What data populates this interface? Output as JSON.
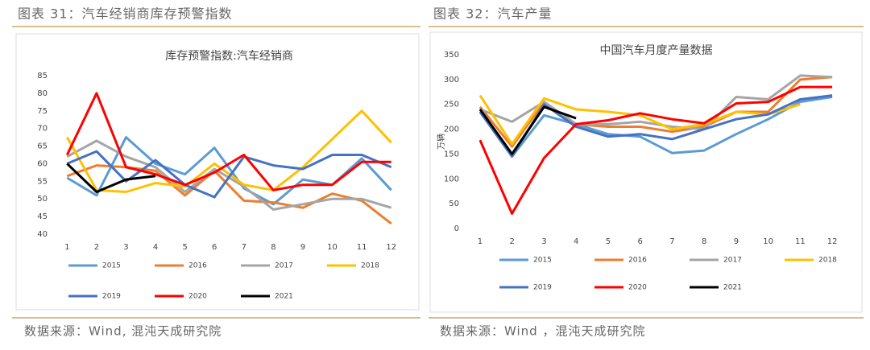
{
  "chart_data": [
    {
      "type": "line",
      "caption": "图表 31：汽车经销商库存预警指数",
      "title": "库存预警指数:汽车经销商",
      "source": "数据来源：Wind, 混沌天成研究院",
      "categories": [
        "1",
        "2",
        "3",
        "4",
        "5",
        "6",
        "7",
        "8",
        "9",
        "10",
        "11",
        "12"
      ],
      "ylim": [
        40,
        85
      ],
      "yticks": [
        40,
        45,
        50,
        55,
        60,
        65,
        70,
        75,
        80,
        85
      ],
      "series": [
        {
          "name": "2015",
          "color": "#5b9bd5",
          "values": [
            56,
            51,
            67.5,
            60,
            57,
            64.5,
            53,
            48.5,
            55.5,
            54,
            61.5,
            52.5
          ]
        },
        {
          "name": "2016",
          "color": "#ed7d31",
          "values": [
            56.5,
            59.5,
            59,
            58,
            51,
            58,
            49.5,
            49,
            47.5,
            51.5,
            49.5,
            43
          ]
        },
        {
          "name": "2017",
          "color": "#a5a5a5",
          "values": [
            62,
            66.5,
            62,
            59,
            52,
            58.5,
            53.5,
            47,
            48.5,
            50,
            50,
            47.5
          ]
        },
        {
          "name": "2018",
          "color": "#ffc000",
          "values": [
            67.5,
            52.5,
            52,
            54.5,
            53.5,
            60,
            54,
            52.5,
            59,
            67,
            75,
            66
          ]
        },
        {
          "name": "2019",
          "color": "#4472c4",
          "values": [
            60,
            63.5,
            55,
            61,
            54,
            50.5,
            62,
            59.5,
            58.5,
            62.5,
            62.5,
            59
          ]
        },
        {
          "name": "2020",
          "color": "#ff0000",
          "values": [
            62.5,
            80,
            59,
            57,
            54,
            57.5,
            62.5,
            52.5,
            54,
            54,
            60.5,
            60.5
          ]
        },
        {
          "name": "2021",
          "color": "#000000",
          "values": [
            60,
            52,
            55.5,
            56.5,
            null,
            null,
            null,
            null,
            null,
            null,
            null,
            null
          ]
        }
      ]
    },
    {
      "type": "line",
      "caption": "图表 32：汽车产量",
      "title": "中国汽车月度产量数据",
      "source": "数据来源：Wind ，混沌天成研究院",
      "ylabel": "万辆",
      "categories": [
        "1",
        "2",
        "3",
        "4",
        "5",
        "6",
        "7",
        "8",
        "9",
        "10",
        "11",
        "12"
      ],
      "ylim": [
        0,
        350
      ],
      "yticks": [
        0,
        50,
        100,
        150,
        200,
        250,
        300,
        350
      ],
      "series": [
        {
          "name": "2015",
          "color": "#5b9bd5",
          "values": [
            235,
            145,
            228,
            210,
            190,
            185,
            152,
            157,
            190,
            220,
            255,
            265
          ]
        },
        {
          "name": "2016",
          "color": "#ed7d31",
          "values": [
            245,
            165,
            255,
            210,
            205,
            205,
            195,
            205,
            235,
            235,
            300,
            305
          ]
        },
        {
          "name": "2017",
          "color": "#a5a5a5",
          "values": [
            240,
            215,
            255,
            210,
            210,
            215,
            205,
            200,
            265,
            260,
            308,
            305
          ]
        },
        {
          "name": "2018",
          "color": "#ffc000",
          "values": [
            268,
            170,
            262,
            240,
            235,
            228,
            200,
            210,
            235,
            230,
            250,
            null
          ]
        },
        {
          "name": "2019",
          "color": "#4472c4",
          "values": [
            235,
            145,
            250,
            205,
            185,
            190,
            180,
            200,
            220,
            230,
            260,
            268
          ]
        },
        {
          "name": "2020",
          "color": "#ff0000",
          "values": [
            178,
            30,
            142,
            210,
            218,
            232,
            220,
            212,
            252,
            255,
            285,
            285
          ]
        },
        {
          "name": "2021",
          "color": "#000000",
          "values": [
            240,
            150,
            245,
            222,
            null,
            null,
            null,
            null,
            null,
            null,
            null,
            null
          ]
        }
      ]
    }
  ]
}
